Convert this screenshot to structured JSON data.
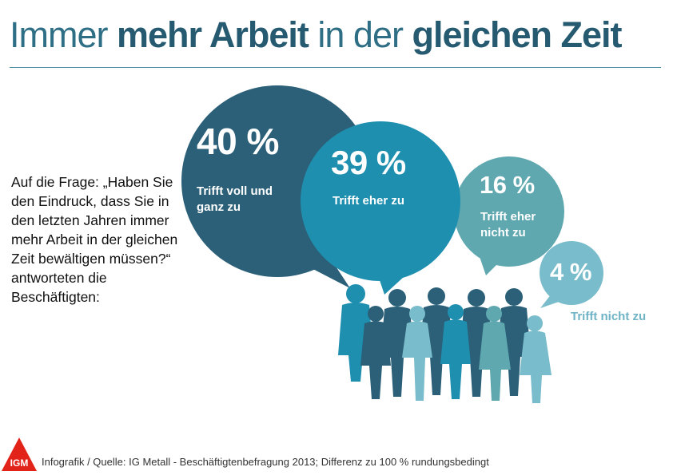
{
  "title": {
    "part1": "Immer ",
    "bold1": "mehr Arbeit",
    "part2": " in der ",
    "bold2": "gleichen Zeit"
  },
  "question": "Auf die Frage: „Haben Sie den Eindruck, dass Sie in den letzten Jahren immer mehr Arbeit in der gleichen Zeit bewältigen müssen?“ antworteten die Beschäftigten:",
  "bubbles": [
    {
      "percent": "40 %",
      "label": "Trifft voll und ganz zu",
      "color": "#2b6078"
    },
    {
      "percent": "39 %",
      "label": "Trifft eher zu",
      "color": "#1f8fb0"
    },
    {
      "percent": "16 %",
      "label": "Trifft eher nicht zu",
      "color": "#5fa8b0"
    },
    {
      "percent": "4 %",
      "label": "Trifft nicht zu",
      "color": "#79bccb"
    }
  ],
  "footer": "Infografik / Quelle: IG Metall - Beschäftigtenbefragung 2013;  Differenz zu 100 % rundungsbedingt",
  "logo": {
    "text": "IGM",
    "color": "#e2231a"
  }
}
